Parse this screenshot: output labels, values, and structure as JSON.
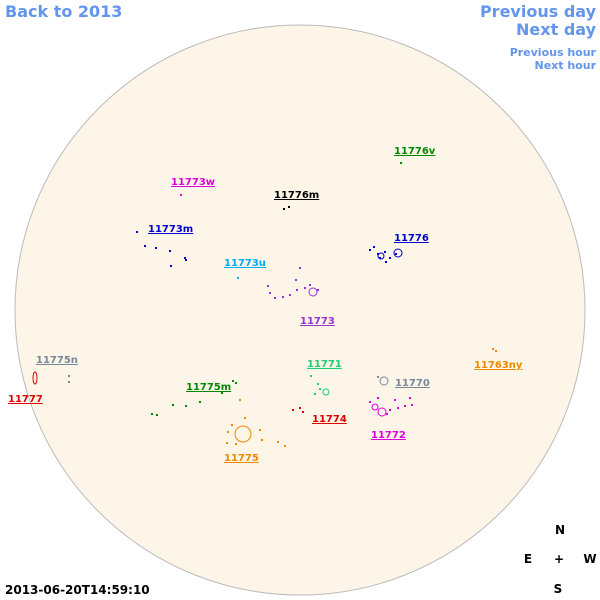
{
  "nav": {
    "back": "Back to 2013",
    "previous_day": "Previous day",
    "next_day": "Next day",
    "previous_hour": "Previous hour",
    "next_hour": "Next hour"
  },
  "regions": [
    {
      "label": "11776v",
      "color": "#008800"
    },
    {
      "label": "11773w",
      "color": "#dd00dd"
    },
    {
      "label": "11776m",
      "color": "#000000"
    },
    {
      "label": "11773m",
      "color": "#0000cc"
    },
    {
      "label": "11776",
      "color": "#0000cc"
    },
    {
      "label": "11773u",
      "color": "#00aaee"
    },
    {
      "label": "11773",
      "color": "#9933cc"
    },
    {
      "label": "11775n",
      "color": "#778899"
    },
    {
      "label": "11777",
      "color": "#dd0000"
    },
    {
      "label": "11771",
      "color": "#22cc77"
    },
    {
      "label": "11763ny",
      "color": "#ee8800"
    },
    {
      "label": "11775m",
      "color": "#008800"
    },
    {
      "label": "11770",
      "color": "#778899"
    },
    {
      "label": "11774",
      "color": "#dd0000"
    },
    {
      "label": "11772",
      "color": "#dd00dd"
    },
    {
      "label": "11775",
      "color": "#ee8800"
    }
  ],
  "compass": {
    "north": "N",
    "east": "E",
    "center": "+",
    "west": "W",
    "south": "S"
  },
  "timestamp": "2013-06-20T14:59:10"
}
